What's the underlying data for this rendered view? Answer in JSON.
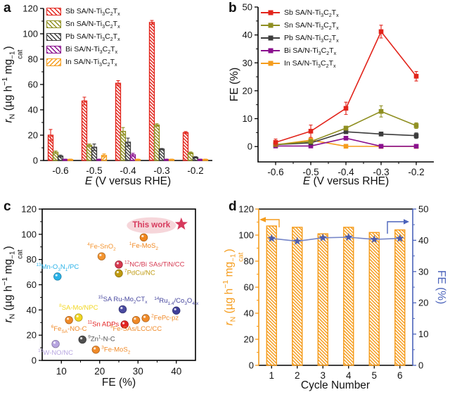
{
  "chart_data": [
    {
      "panel": "a",
      "type": "bar",
      "xlabel_html": "<i>E</i> (V versus RHE)",
      "ylabel_html": "<i>r</i><sub>N</sub> (µg h<sup>−1</sup> mg<span class=\"ss\"><span>−1</span><span>cat</span></span>)",
      "categories": [
        "-0.6",
        "-0.5",
        "-0.4",
        "-0.3",
        "-0.2"
      ],
      "ylim": [
        0,
        120
      ],
      "yticks": [
        0,
        20,
        40,
        60,
        80,
        100,
        120
      ],
      "series": [
        {
          "name_html": "Sb SA/N-Ti<sub>3</sub>C<sub>2</sub>T<sub>x</sub>",
          "color": "#e2241b",
          "hatch": "back",
          "values": [
            20,
            47,
            61,
            109,
            22
          ],
          "errors": [
            4.5,
            3,
            2,
            1.5,
            0.8
          ]
        },
        {
          "name_html": "Sn SA/N-Ti<sub>3</sub>C<sub>2</sub>T<sub>x</sub>",
          "color": "#8f8f21",
          "hatch": "back",
          "values": [
            6.5,
            12,
            23,
            28,
            6
          ],
          "errors": [
            1,
            1,
            3,
            1,
            0.7
          ]
        },
        {
          "name_html": "Pb SA/N-Ti<sub>3</sub>C<sub>2</sub>T<sub>x</sub>",
          "color": "#3c3c3c",
          "hatch": "back",
          "values": [
            3.5,
            10.5,
            14.5,
            9,
            2.5
          ],
          "errors": [
            0.8,
            2.5,
            3.2,
            0.5,
            0.5
          ]
        },
        {
          "name_html": "Bi SA/N-Ti<sub>3</sub>C<sub>2</sub>T<sub>x</sub>",
          "color": "#8a0f8e",
          "hatch": "back",
          "values": [
            0.8,
            0.8,
            4.5,
            0.8,
            0.8
          ],
          "errors": [
            0.3,
            0.3,
            1.2,
            0.3,
            0.3
          ]
        },
        {
          "name_html": "In SA/N-Ti<sub>3</sub>C<sub>2</sub>T<sub>x</sub>",
          "color": "#f59c1c",
          "hatch": "fwd",
          "values": [
            0.8,
            4,
            0.8,
            0.8,
            0.8
          ],
          "errors": [
            0.3,
            1.2,
            0.3,
            0.3,
            0.3
          ]
        }
      ]
    },
    {
      "panel": "b",
      "type": "line",
      "xlabel_html": "<i>E</i> (V versus RHE)",
      "ylabel_html": "FE (%)",
      "categories": [
        "-0.6",
        "-0.5",
        "-0.4",
        "-0.3",
        "-0.2"
      ],
      "ylim": [
        -5.5,
        50
      ],
      "yticks": [
        0,
        10,
        20,
        30,
        40,
        50
      ],
      "series": [
        {
          "name_html": "Sb SA/N-Ti<sub>3</sub>C<sub>2</sub>T<sub>x</sub>",
          "color": "#e2241b",
          "values": [
            1.5,
            5.5,
            13.7,
            41.2,
            25.2
          ],
          "errors": [
            1.2,
            2.2,
            2.2,
            2.3,
            1.7
          ]
        },
        {
          "name_html": "Sn SA/N-Ti<sub>3</sub>C<sub>2</sub>T<sub>x</sub>",
          "color": "#8f8f21",
          "values": [
            0.7,
            1.8,
            6.6,
            12.6,
            7.5
          ],
          "errors": [
            0.3,
            0.4,
            0.7,
            2,
            1
          ]
        },
        {
          "name_html": "Pb SA/N-Ti<sub>3</sub>C<sub>2</sub>T<sub>x</sub>",
          "color": "#3c3c3c",
          "values": [
            0.7,
            1.3,
            5.3,
            4.5,
            3.9
          ],
          "errors": [
            0.2,
            0.3,
            0.6,
            0.7,
            1
          ]
        },
        {
          "name_html": "Bi SA/N-Ti<sub>3</sub>C<sub>2</sub>T<sub>x</sub>",
          "color": "#8a0f8e",
          "values": [
            0.2,
            0.2,
            3,
            0.1,
            0.1
          ],
          "errors": [
            0.1,
            0.1,
            0.6,
            0.05,
            0.05
          ]
        },
        {
          "name_html": "In SA/N-Ti<sub>3</sub>C<sub>2</sub>T<sub>x</sub>",
          "color": "#f59c1c",
          "values": [
            0.6,
            2.3,
            0.1,
            0.05,
            0.05
          ],
          "errors": [
            0.3,
            0.7,
            0.1,
            0,
            0
          ]
        }
      ]
    },
    {
      "panel": "c",
      "type": "scatter",
      "xlabel_html": "FE (%)",
      "ylabel_html": "<i>r</i><sub>N</sub> (µg h<sup>−1</sup> mg<span class=\"ss\"><span>−1</span><span>cat</span></span>)",
      "xlim": [
        5,
        45
      ],
      "xticks": [
        10,
        20,
        30,
        40
      ],
      "ylim": [
        0,
        120
      ],
      "yticks": [
        0,
        20,
        40,
        60,
        80,
        100,
        120
      ],
      "highlight": {
        "text": "This work",
        "x": 33.5,
        "y": 107,
        "ellipse_fill": "#f6d6da",
        "text_color": "#d6395c"
      },
      "star": {
        "x": 41.3,
        "y": 108,
        "color": "#d6395c"
      },
      "points": [
        {
          "label_html": "<sup>1</sup>Fe-MoS<sub>2</sub>",
          "x": 31.5,
          "y": 97.5,
          "color": "#f0861d",
          "anchor": "below"
        },
        {
          "label_html": "<sup>4</sup>Fe-SnO<sub>2</sub>",
          "x": 20.5,
          "y": 82.5,
          "color": "#f49530",
          "anchor": "above"
        },
        {
          "label_html": "<sup>12</sup>NC/Bi SAs/TiN/CC",
          "x": 25,
          "y": 76,
          "color": "#d63850",
          "anchor": "right"
        },
        {
          "label_html": "<sup>7</sup>PdCu/NC",
          "x": 25,
          "y": 69,
          "color": "#bf9a10",
          "anchor": "right"
        },
        {
          "label_html": "<sup>13</sup>Mn-O<sub>3</sub>N<sub>1</sub>/PC",
          "x": 9,
          "y": 66.5,
          "color": "#29b2e8",
          "anchor": "above"
        },
        {
          "label_html": "<sup>15</sup>SA Ru-Mo<sub>2</sub>CT<sub>x</sub>",
          "x": 26,
          "y": 40.5,
          "color": "#4a4aa0",
          "anchor": "above"
        },
        {
          "label_html": "<sup>14</sup>Ru<sub>1.4</sub>/Co<sub>3</sub>O<sub>4-x</sub>",
          "x": 40,
          "y": 39.5,
          "color": "#3f3f9a",
          "anchor": "above"
        },
        {
          "label_html": "<sup>8</sup>SA-Mo/NPC",
          "x": 14.5,
          "y": 34,
          "color": "#f2d722",
          "anchor": "above"
        },
        {
          "label_html": "<sup>6</sup>Fe<sub>SA</sub>-NO-C",
          "x": 12,
          "y": 32,
          "color": "#f08a28",
          "anchor": "below"
        },
        {
          "label_html": "<sup>2</sup>FePc-pz",
          "x": 32,
          "y": 33.5,
          "color": "#f08a28",
          "anchor": "right"
        },
        {
          "label_html": "<sup>5</sup>Fe-SAs/LCC/CC",
          "x": 29.5,
          "y": 32,
          "color": "#f08a28",
          "anchor": "below"
        },
        {
          "label_html": "<sup>11</sup>Sn ADPs",
          "x": 26.5,
          "y": 28.5,
          "color": "#e32222",
          "anchor": "left"
        },
        {
          "label_html": "<sup>9</sup>Zn<sup>1</sup>-N-C",
          "x": 15.5,
          "y": 16.5,
          "color": "#4f4f4f",
          "anchor": "right"
        },
        {
          "label_html": "<sup>10</sup>W-NO/NC",
          "x": 8.5,
          "y": 13,
          "color": "#b7a5e0",
          "anchor": "below"
        },
        {
          "label_html": "<sup>3</sup>Fe-MoS<sub>2</sub>",
          "x": 19,
          "y": 8.5,
          "color": "#f08a28",
          "anchor": "right"
        }
      ]
    },
    {
      "panel": "d",
      "type": "dual",
      "xlabel_html": "Cycle Number",
      "ylabel_html": "<i>r</i><sub>N</sub> (µg h<sup>−1</sup> mg<span class=\"ss\"><span>−1</span><span>cat</span></span>)",
      "ylabel_right_html": "FE (%)",
      "categories": [
        "1",
        "2",
        "3",
        "4",
        "5",
        "6"
      ],
      "ylim_left": [
        0,
        120
      ],
      "yticks_left": [
        0,
        20,
        40,
        60,
        80,
        100,
        120
      ],
      "ylim_right": [
        0,
        50
      ],
      "yticks_right": [
        0,
        10,
        20,
        30,
        40,
        50
      ],
      "bar_color": "#f59c1c",
      "line_color": "#7585c8",
      "star_color": "#4d5cab",
      "right_axis_color": "#4b63bb",
      "bars": [
        107,
        106,
        101,
        106,
        102,
        104
      ],
      "fe": [
        40.6,
        39.7,
        40.8,
        41,
        40.3,
        40.6
      ]
    }
  ]
}
